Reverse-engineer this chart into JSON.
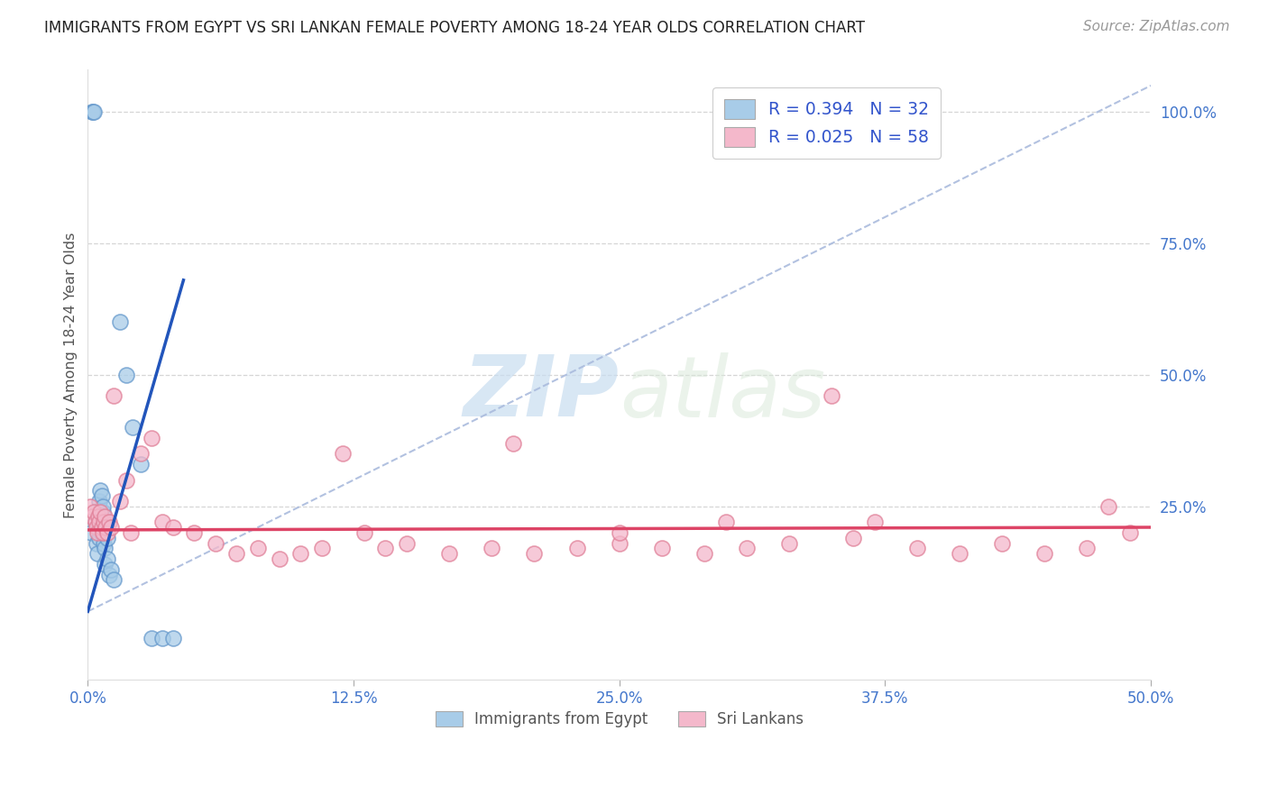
{
  "title": "IMMIGRANTS FROM EGYPT VS SRI LANKAN FEMALE POVERTY AMONG 18-24 YEAR OLDS CORRELATION CHART",
  "source": "Source: ZipAtlas.com",
  "xlabel_ticks": [
    "0.0%",
    "12.5%",
    "25.0%",
    "37.5%",
    "50.0%"
  ],
  "xlabel_vals": [
    0.0,
    12.5,
    25.0,
    37.5,
    50.0
  ],
  "xlim": [
    0,
    50
  ],
  "ylim": [
    -8,
    108
  ],
  "blue_label": "Immigrants from Egypt",
  "pink_label": "Sri Lankans",
  "blue_R": 0.394,
  "blue_N": 32,
  "pink_R": 0.025,
  "pink_N": 58,
  "blue_color": "#a8cce8",
  "pink_color": "#f4b8cb",
  "blue_edge_color": "#6699cc",
  "pink_edge_color": "#e08098",
  "blue_line_color": "#2255bb",
  "pink_line_color": "#dd4466",
  "dashed_color": "#aabbdd",
  "legend_color": "#3355cc",
  "tick_color": "#4477cc",
  "ylabel_text": "Female Poverty Among 18-24 Year Olds",
  "watermark_zip": "ZIP",
  "watermark_atlas": "atlas",
  "background_color": "#ffffff",
  "grid_color": "#cccccc",
  "blue_scatter_x": [
    0.18,
    0.22,
    0.28,
    0.15,
    0.35,
    0.4,
    0.45,
    0.5,
    0.55,
    0.6,
    0.65,
    0.7,
    0.75,
    0.8,
    0.85,
    0.9,
    0.55,
    0.6,
    0.65,
    0.7,
    0.8,
    0.9,
    1.0,
    1.1,
    1.2,
    1.5,
    1.8,
    2.1,
    2.5,
    3.0,
    3.5,
    4.0
  ],
  "blue_scatter_y": [
    100.0,
    100.0,
    100.0,
    20.0,
    22.0,
    18.0,
    16.0,
    21.0,
    19.0,
    23.0,
    20.0,
    24.0,
    18.0,
    17.0,
    21.0,
    19.0,
    26.0,
    28.0,
    27.0,
    25.0,
    14.0,
    15.0,
    12.0,
    13.0,
    11.0,
    60.0,
    50.0,
    40.0,
    33.0,
    0.0,
    0.0,
    0.0
  ],
  "pink_scatter_x": [
    0.1,
    0.2,
    0.3,
    0.35,
    0.4,
    0.45,
    0.5,
    0.55,
    0.6,
    0.65,
    0.7,
    0.75,
    0.8,
    0.85,
    0.9,
    1.0,
    1.1,
    1.2,
    1.5,
    1.8,
    2.0,
    2.5,
    3.0,
    3.5,
    4.0,
    5.0,
    6.0,
    7.0,
    8.0,
    9.0,
    10.0,
    11.0,
    12.0,
    13.0,
    14.0,
    15.0,
    17.0,
    19.0,
    21.0,
    23.0,
    25.0,
    27.0,
    29.0,
    31.0,
    33.0,
    35.0,
    37.0,
    39.0,
    41.0,
    43.0,
    45.0,
    47.0,
    49.0,
    20.0,
    25.0,
    30.0,
    36.0,
    48.0
  ],
  "pink_scatter_y": [
    25.0,
    23.0,
    24.0,
    22.0,
    21.0,
    20.0,
    23.0,
    22.0,
    24.0,
    21.0,
    20.0,
    22.0,
    23.0,
    21.0,
    20.0,
    22.0,
    21.0,
    46.0,
    26.0,
    30.0,
    20.0,
    35.0,
    38.0,
    22.0,
    21.0,
    20.0,
    18.0,
    16.0,
    17.0,
    15.0,
    16.0,
    17.0,
    35.0,
    20.0,
    17.0,
    18.0,
    16.0,
    17.0,
    16.0,
    17.0,
    18.0,
    17.0,
    16.0,
    17.0,
    18.0,
    46.0,
    22.0,
    17.0,
    16.0,
    18.0,
    16.0,
    17.0,
    20.0,
    37.0,
    20.0,
    22.0,
    19.0,
    25.0
  ],
  "right_ytick_vals": [
    100.0,
    75.0,
    50.0,
    25.0
  ],
  "right_ytick_labels": [
    "100.0%",
    "75.0%",
    "50.0%",
    "25.0%"
  ],
  "blue_solid_line_x": [
    0.0,
    3.5
  ],
  "blue_solid_line_y_intercept": 5.0,
  "blue_solid_line_slope": 14.0,
  "pink_solid_line_y": [
    20.5,
    21.0
  ],
  "dashed_line_x": [
    0.0,
    50.0
  ],
  "dashed_line_y": [
    5.0,
    105.0
  ]
}
